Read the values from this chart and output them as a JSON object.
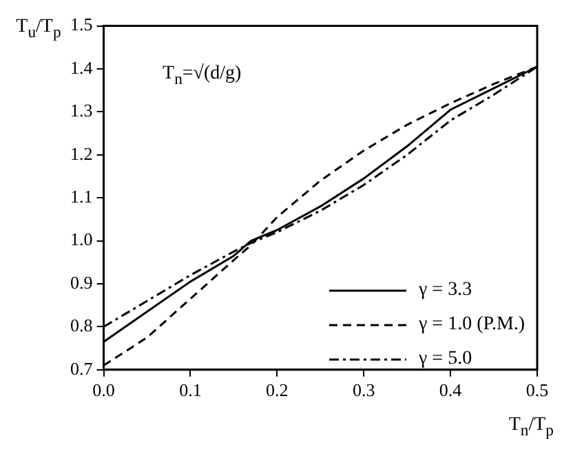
{
  "chart_data": {
    "type": "line",
    "xlabel": "T$_{n}$/T$_{p}$",
    "ylabel": "T$_{u}$/T$_{p}$",
    "annotations": [
      "T$_{n}$=√(d/g)"
    ],
    "x": [
      0,
      0.05,
      0.1,
      0.15,
      0.17,
      0.2,
      0.25,
      0.3,
      0.35,
      0.4,
      0.45,
      0.5
    ],
    "series": [
      {
        "name": "γ = 3.3",
        "color": "#000000",
        "line_style": "solid",
        "values": [
          0.765,
          0.835,
          0.905,
          0.965,
          1.0,
          1.025,
          1.08,
          1.145,
          1.22,
          1.305,
          1.355,
          1.405
        ]
      },
      {
        "name": "γ = 1.0 (P.M.)",
        "color": "#000000",
        "line_style": "dashed",
        "values": [
          0.71,
          0.775,
          0.865,
          0.955,
          0.99,
          1.055,
          1.14,
          1.21,
          1.27,
          1.32,
          1.365,
          1.405
        ]
      },
      {
        "name": "γ = 5.0",
        "color": "#000000",
        "line_style": "dashdot",
        "values": [
          0.8,
          0.86,
          0.92,
          0.975,
          0.995,
          1.02,
          1.07,
          1.13,
          1.2,
          1.28,
          1.34,
          1.405
        ]
      }
    ],
    "xlim": [
      0,
      0.5
    ],
    "xticks": [
      {
        "value": 0,
        "label": "0.0"
      },
      0.1,
      0.2,
      0.3,
      0.4,
      0.5
    ],
    "ylim": [
      0.7,
      1.5
    ],
    "yticks": [
      0.7,
      0.8,
      0.9,
      {
        "value": 1,
        "label": "1.0"
      },
      1.1,
      1.2,
      1.3,
      1.4,
      1.5
    ],
    "grid": false,
    "legend": "bottom right",
    "marker": "none"
  }
}
